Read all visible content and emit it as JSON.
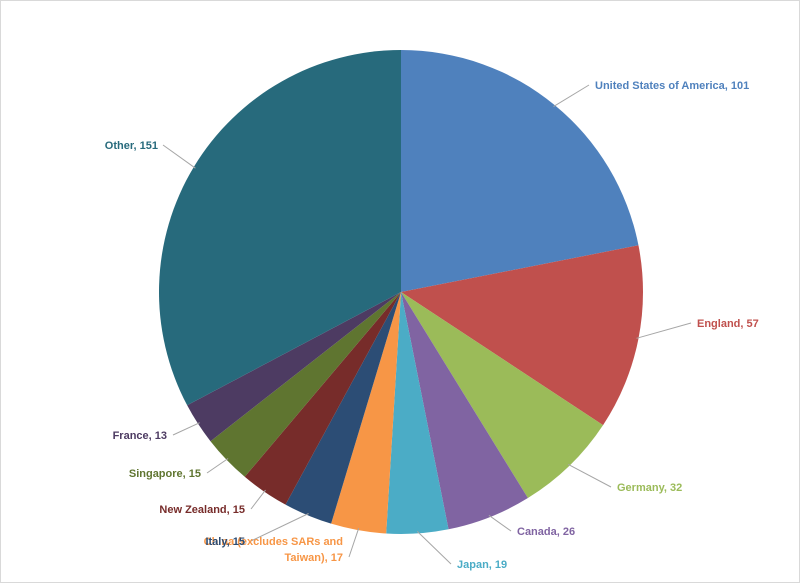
{
  "chart_data": {
    "type": "pie",
    "start_angle_deg": 0,
    "direction": "clockwise",
    "slices": [
      {
        "label": "United States of America, 101",
        "value": 101,
        "color": "#4F81BD"
      },
      {
        "label": "England, 57",
        "value": 57,
        "color": "#C0504D"
      },
      {
        "label": "Germany, 32",
        "value": 32,
        "color": "#9BBB59"
      },
      {
        "label": "Canada, 26",
        "value": 26,
        "color": "#8064A2"
      },
      {
        "label": "Japan, 19",
        "value": 19,
        "color": "#4BACC6"
      },
      {
        "label_lines": [
          "China (excludes SARs and",
          "Taiwan), 17"
        ],
        "value": 17,
        "color": "#F79646"
      },
      {
        "label": "Italy, 15",
        "value": 15,
        "color": "#2C4D75"
      },
      {
        "label": "New Zealand, 15",
        "value": 15,
        "color": "#772C2A"
      },
      {
        "label": "Singapore, 15",
        "value": 15,
        "color": "#5F7530"
      },
      {
        "label": "France, 13",
        "value": 13,
        "color": "#4D3B62"
      },
      {
        "label": "Other, 151",
        "value": 151,
        "color": "#276A7C"
      }
    ]
  }
}
